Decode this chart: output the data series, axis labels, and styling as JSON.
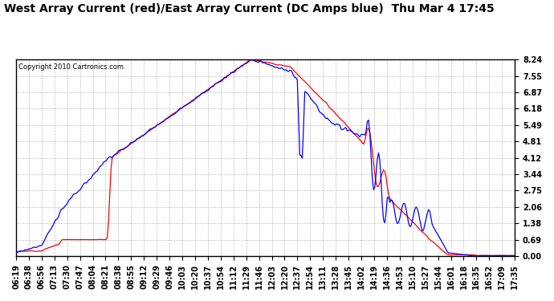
{
  "title": "West Array Current (red)/East Array Current (DC Amps blue)  Thu Mar 4 17:45",
  "copyright": "Copyright 2010 Cartronics.com",
  "yticks": [
    0.0,
    0.69,
    1.38,
    2.06,
    2.75,
    3.44,
    4.12,
    4.81,
    5.49,
    6.18,
    6.87,
    7.55,
    8.24
  ],
  "ylim": [
    0.0,
    8.24
  ],
  "xlabel_times": [
    "06:19",
    "06:38",
    "06:56",
    "07:13",
    "07:30",
    "07:47",
    "08:04",
    "08:21",
    "08:38",
    "08:55",
    "09:12",
    "09:29",
    "09:46",
    "10:03",
    "10:20",
    "10:37",
    "10:54",
    "11:12",
    "11:29",
    "11:46",
    "12:03",
    "12:20",
    "12:37",
    "12:54",
    "13:11",
    "13:28",
    "13:45",
    "14:02",
    "14:19",
    "14:36",
    "14:53",
    "15:10",
    "15:27",
    "15:44",
    "16:01",
    "16:18",
    "16:35",
    "16:52",
    "17:09",
    "17:35"
  ],
  "background_color": "#ffffff",
  "plot_bg_color": "#ffffff",
  "grid_color": "#b0b0b0",
  "red_line_color": "#ff0000",
  "blue_line_color": "#0000ff",
  "title_fontsize": 10,
  "tick_fontsize": 7
}
